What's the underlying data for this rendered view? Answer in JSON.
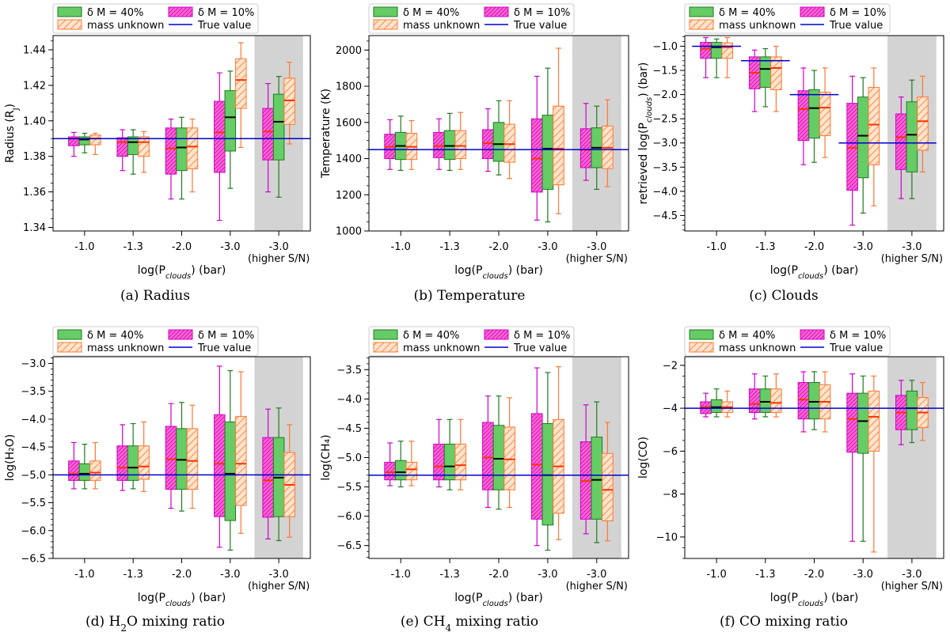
{
  "colors": {
    "d40_fill": "#66cc66",
    "d40_edge": "#1f7a1f",
    "d40_med": "#000000",
    "d10_fill": "#ff66cc",
    "d10_edge": "#cc00cc",
    "d10_med": "#ff3300",
    "unk_fill": "#ffe4cc",
    "unk_edge": "#ff7733",
    "unk_med": "#ff3300",
    "true_line": "#0000cc",
    "shade": "#d3d3d3"
  },
  "legend": {
    "d40": "δ M = 40%",
    "d10": "δ M = 10%",
    "unk": "mass unknown",
    "true": "True value"
  },
  "chart_data": [
    {
      "id": "radius",
      "type": "box",
      "caption": "(a) Radius",
      "ylabel": "Radius (R_J)",
      "xlabel": "log(P_clouds) (bar)",
      "categories": [
        "-1.0",
        "-1.3",
        "-2.0",
        "-3.0",
        "-3.0"
      ],
      "category_sublabels": [
        "",
        "",
        "",
        "",
        "(higher S/N)"
      ],
      "ylim": [
        1.338,
        1.448
      ],
      "yticks": [
        1.34,
        1.36,
        1.38,
        1.4,
        1.42,
        1.44
      ],
      "ytick_labels": [
        "1.34",
        "1.36",
        "1.38",
        "1.40",
        "1.42",
        "1.44"
      ],
      "minor_step": 0.005,
      "true_value": 1.39,
      "true_span": "full",
      "series": {
        "d10": [
          [
            1.38,
            1.386,
            1.39,
            1.391,
            1.3935
          ],
          [
            1.372,
            1.38,
            1.388,
            1.3905,
            1.395
          ],
          [
            1.356,
            1.37,
            1.3845,
            1.396,
            1.401
          ],
          [
            1.344,
            1.371,
            1.3935,
            1.411,
            1.427
          ],
          [
            1.36,
            1.378,
            1.394,
            1.407,
            1.421
          ]
        ],
        "d40": [
          [
            1.382,
            1.3865,
            1.3895,
            1.391,
            1.393
          ],
          [
            1.37,
            1.381,
            1.388,
            1.391,
            1.395
          ],
          [
            1.356,
            1.372,
            1.385,
            1.396,
            1.402
          ],
          [
            1.362,
            1.383,
            1.402,
            1.417,
            1.428
          ],
          [
            1.357,
            1.378,
            1.3995,
            1.415,
            1.425
          ]
        ],
        "unk": [
          [
            1.381,
            1.3865,
            1.39,
            1.392,
            1.393
          ],
          [
            1.371,
            1.38,
            1.388,
            1.391,
            1.394
          ],
          [
            1.36,
            1.373,
            1.3855,
            1.396,
            1.401
          ],
          [
            1.385,
            1.407,
            1.423,
            1.435,
            1.444
          ],
          [
            1.387,
            1.398,
            1.4115,
            1.424,
            1.433
          ]
        ]
      }
    },
    {
      "id": "temperature",
      "type": "box",
      "caption": "(b) Temperature",
      "ylabel": "Temperature (K)",
      "xlabel": "log(P_clouds) (bar)",
      "categories": [
        "-1.0",
        "-1.3",
        "-2.0",
        "-3.0",
        "-3.0"
      ],
      "category_sublabels": [
        "",
        "",
        "",
        "",
        "(higher S/N)"
      ],
      "ylim": [
        1000,
        2080
      ],
      "yticks": [
        1000,
        1200,
        1400,
        1600,
        1800,
        2000
      ],
      "ytick_labels": [
        "1000",
        "1200",
        "1400",
        "1600",
        "1800",
        "2000"
      ],
      "minor_step": 50,
      "true_value": 1450,
      "true_span": "full",
      "series": {
        "d10": [
          [
            1340,
            1400,
            1465,
            1535,
            1615
          ],
          [
            1340,
            1405,
            1470,
            1545,
            1620
          ],
          [
            1330,
            1400,
            1485,
            1560,
            1675
          ],
          [
            1060,
            1215,
            1400,
            1620,
            1855
          ],
          [
            1280,
            1350,
            1450,
            1565,
            1705
          ]
        ],
        "d40": [
          [
            1335,
            1395,
            1470,
            1545,
            1635
          ],
          [
            1335,
            1395,
            1470,
            1555,
            1650
          ],
          [
            1310,
            1385,
            1480,
            1600,
            1720
          ],
          [
            1050,
            1230,
            1455,
            1640,
            1900
          ],
          [
            1230,
            1350,
            1460,
            1570,
            1690
          ]
        ],
        "unk": [
          [
            1340,
            1395,
            1465,
            1540,
            1610
          ],
          [
            1340,
            1400,
            1470,
            1555,
            1655
          ],
          [
            1290,
            1380,
            1480,
            1590,
            1720
          ],
          [
            1095,
            1255,
            1455,
            1690,
            2010
          ],
          [
            1245,
            1345,
            1460,
            1580,
            1725
          ]
        ]
      }
    },
    {
      "id": "clouds",
      "type": "box",
      "caption": "(c) Clouds",
      "ylabel": "retrieved log(P_clouds) (bar)",
      "xlabel": "log(P_clouds) (bar)",
      "categories": [
        "-1.0",
        "-1.3",
        "-2.0",
        "-3.0",
        "-3.0"
      ],
      "category_sublabels": [
        "",
        "",
        "",
        "",
        "(higher S/N)"
      ],
      "ylim": [
        -4.82,
        -0.78
      ],
      "yticks": [
        -4.5,
        -4.0,
        -3.5,
        -3.0,
        -2.5,
        -2.0,
        -1.5,
        -1.0
      ],
      "ytick_labels": [
        "−4.5",
        "−4.0",
        "−3.5",
        "−3.0",
        "−2.5",
        "−2.0",
        "−1.5",
        "−1.0"
      ],
      "minor_step": 0.1,
      "true_values": [
        -1.0,
        -1.3,
        -2.0,
        -3.0,
        -3.0
      ],
      "true_span": "segments",
      "series": {
        "d10": [
          [
            -1.65,
            -1.25,
            -1.05,
            -0.92,
            -0.82
          ],
          [
            -2.35,
            -1.88,
            -1.55,
            -1.22,
            -1.08
          ],
          [
            -3.45,
            -2.95,
            -2.3,
            -1.92,
            -1.45
          ],
          [
            -4.7,
            -3.98,
            -3.1,
            -2.18,
            -1.62
          ],
          [
            -4.15,
            -3.55,
            -2.88,
            -2.4,
            -2.05
          ]
        ],
        "d40": [
          [
            -1.65,
            -1.25,
            -1.02,
            -0.92,
            -0.85
          ],
          [
            -2.25,
            -1.85,
            -1.47,
            -1.22,
            -1.05
          ],
          [
            -3.4,
            -2.9,
            -2.28,
            -1.9,
            -1.5
          ],
          [
            -4.45,
            -3.72,
            -2.85,
            -2.05,
            -1.65
          ],
          [
            -4.15,
            -3.6,
            -2.83,
            -2.15,
            -1.7
          ]
        ],
        "unk": [
          [
            -1.65,
            -1.25,
            -1.02,
            -0.93,
            -0.82
          ],
          [
            -2.35,
            -1.9,
            -1.45,
            -1.22,
            -1.0
          ],
          [
            -3.3,
            -2.85,
            -2.27,
            -1.95,
            -1.45
          ],
          [
            -4.3,
            -3.45,
            -2.62,
            -1.85,
            -1.45
          ],
          [
            -3.6,
            -3.15,
            -2.55,
            -2.05,
            -1.62
          ]
        ]
      }
    },
    {
      "id": "h2o",
      "type": "box",
      "caption": "(d) H₂O mixing ratio",
      "ylabel": "log(H₂O)",
      "xlabel": "log(P_clouds) (bar)",
      "categories": [
        "-1.0",
        "-1.3",
        "-2.0",
        "-3.0",
        "-3.0"
      ],
      "category_sublabels": [
        "",
        "",
        "",
        "",
        "(higher S/N)"
      ],
      "ylim": [
        -6.5,
        -2.88
      ],
      "yticks": [
        -6.5,
        -6.0,
        -5.5,
        -5.0,
        -4.5,
        -4.0,
        -3.5,
        -3.0
      ],
      "ytick_labels": [
        "−6.5",
        "−6.0",
        "−5.5",
        "−5.0",
        "−4.5",
        "−4.0",
        "−3.5",
        "−3.0"
      ],
      "minor_step": 0.1,
      "true_value": -5.0,
      "true_span": "full",
      "series": {
        "d10": [
          [
            -5.25,
            -5.1,
            -4.98,
            -4.75,
            -4.42
          ],
          [
            -5.28,
            -5.1,
            -4.87,
            -4.48,
            -4.1
          ],
          [
            -5.6,
            -5.26,
            -4.72,
            -4.13,
            -3.72
          ],
          [
            -6.3,
            -5.75,
            -4.8,
            -3.92,
            -3.05
          ],
          [
            -6.15,
            -5.76,
            -5.1,
            -4.33,
            -3.82
          ]
        ],
        "d40": [
          [
            -5.25,
            -5.1,
            -4.98,
            -4.8,
            -4.45
          ],
          [
            -5.25,
            -5.1,
            -4.87,
            -4.48,
            -4.08
          ],
          [
            -5.65,
            -5.26,
            -4.73,
            -4.17,
            -3.7
          ],
          [
            -6.35,
            -5.82,
            -4.98,
            -4.05,
            -3.13
          ],
          [
            -6.18,
            -5.75,
            -5.05,
            -4.33,
            -3.8
          ]
        ],
        "unk": [
          [
            -5.25,
            -5.1,
            -4.96,
            -4.75,
            -4.42
          ],
          [
            -5.3,
            -5.08,
            -4.85,
            -4.48,
            -4.05
          ],
          [
            -5.6,
            -5.26,
            -4.75,
            -4.17,
            -3.75
          ],
          [
            -6.05,
            -5.55,
            -4.8,
            -3.95,
            -3.15
          ],
          [
            -6.12,
            -5.75,
            -5.18,
            -4.6,
            -4.1
          ]
        ]
      }
    },
    {
      "id": "ch4",
      "type": "box",
      "caption": "(e) CH₄ mixing ratio",
      "ylabel": "log(CH₄)",
      "xlabel": "log(P_clouds) (bar)",
      "categories": [
        "-1.0",
        "-1.3",
        "-2.0",
        "-3.0",
        "-3.0"
      ],
      "category_sublabels": [
        "",
        "",
        "",
        "",
        "(higher S/N)"
      ],
      "ylim": [
        -6.72,
        -3.28
      ],
      "yticks": [
        -6.5,
        -6.0,
        -5.5,
        -5.0,
        -4.5,
        -4.0,
        -3.5
      ],
      "ytick_labels": [
        "−6.5",
        "−6.0",
        "−5.5",
        "−5.0",
        "−4.5",
        "−4.0",
        "−3.5"
      ],
      "minor_step": 0.1,
      "true_value": -5.3,
      "true_span": "full",
      "series": {
        "d10": [
          [
            -5.48,
            -5.38,
            -5.25,
            -5.08,
            -4.75
          ],
          [
            -5.5,
            -5.38,
            -5.15,
            -4.77,
            -4.35
          ],
          [
            -5.85,
            -5.55,
            -5.0,
            -4.4,
            -3.95
          ],
          [
            -6.5,
            -6.05,
            -5.12,
            -4.25,
            -3.47
          ],
          [
            -6.3,
            -6.05,
            -5.4,
            -4.73,
            -4.1
          ]
        ],
        "d40": [
          [
            -5.5,
            -5.38,
            -5.25,
            -5.05,
            -4.72
          ],
          [
            -5.55,
            -5.38,
            -5.15,
            -4.77,
            -4.35
          ],
          [
            -5.88,
            -5.55,
            -5.02,
            -4.45,
            -3.95
          ],
          [
            -6.58,
            -6.15,
            -5.3,
            -4.42,
            -3.55
          ],
          [
            -6.45,
            -6.05,
            -5.38,
            -4.65,
            -4.05
          ]
        ],
        "unk": [
          [
            -5.48,
            -5.38,
            -5.2,
            -5.08,
            -4.72
          ],
          [
            -5.55,
            -5.38,
            -5.13,
            -4.77,
            -4.35
          ],
          [
            -5.85,
            -5.55,
            -5.03,
            -4.48,
            -3.98
          ],
          [
            -6.4,
            -5.95,
            -5.15,
            -4.35,
            -3.45
          ],
          [
            -6.42,
            -6.08,
            -5.55,
            -4.93,
            -4.4
          ]
        ]
      }
    },
    {
      "id": "co",
      "type": "box",
      "caption": "(f) CO mixing ratio",
      "ylabel": "log(CO)",
      "xlabel": "log(P_clouds) (bar)",
      "categories": [
        "-1.0",
        "-1.3",
        "-2.0",
        "-3.0",
        "-3.0"
      ],
      "category_sublabels": [
        "",
        "",
        "",
        "",
        "(higher S/N)"
      ],
      "ylim": [
        -11.0,
        -1.6
      ],
      "yticks": [
        -10,
        -8,
        -6,
        -4,
        -2
      ],
      "ytick_labels": [
        "−10",
        "−8",
        "−6",
        "−4",
        "−2"
      ],
      "minor_step": 0.5,
      "true_value": -4.0,
      "true_span": "full",
      "series": {
        "d10": [
          [
            -4.4,
            -4.25,
            -3.95,
            -3.7,
            -3.3
          ],
          [
            -4.5,
            -4.2,
            -3.8,
            -3.1,
            -2.4
          ],
          [
            -5.1,
            -4.5,
            -3.6,
            -2.8,
            -2.3
          ],
          [
            -10.2,
            -6.05,
            -4.5,
            -3.3,
            -2.4
          ],
          [
            -5.7,
            -5.0,
            -4.2,
            -3.4,
            -2.7
          ]
        ],
        "d40": [
          [
            -4.4,
            -4.2,
            -3.95,
            -3.6,
            -3.1
          ],
          [
            -4.4,
            -4.2,
            -3.7,
            -3.1,
            -2.5
          ],
          [
            -5.0,
            -4.5,
            -3.7,
            -2.8,
            -2.3
          ],
          [
            -10.2,
            -6.1,
            -4.6,
            -3.3,
            -2.5
          ],
          [
            -5.6,
            -5.0,
            -4.0,
            -3.2,
            -2.7
          ]
        ],
        "unk": [
          [
            -4.4,
            -4.2,
            -3.95,
            -3.7,
            -3.2
          ],
          [
            -4.4,
            -4.2,
            -3.75,
            -3.1,
            -2.4
          ],
          [
            -5.1,
            -4.5,
            -3.7,
            -2.9,
            -2.3
          ],
          [
            -10.7,
            -6.0,
            -4.4,
            -3.2,
            -2.5
          ],
          [
            -5.5,
            -4.9,
            -4.2,
            -3.5,
            -2.8
          ]
        ]
      }
    }
  ]
}
